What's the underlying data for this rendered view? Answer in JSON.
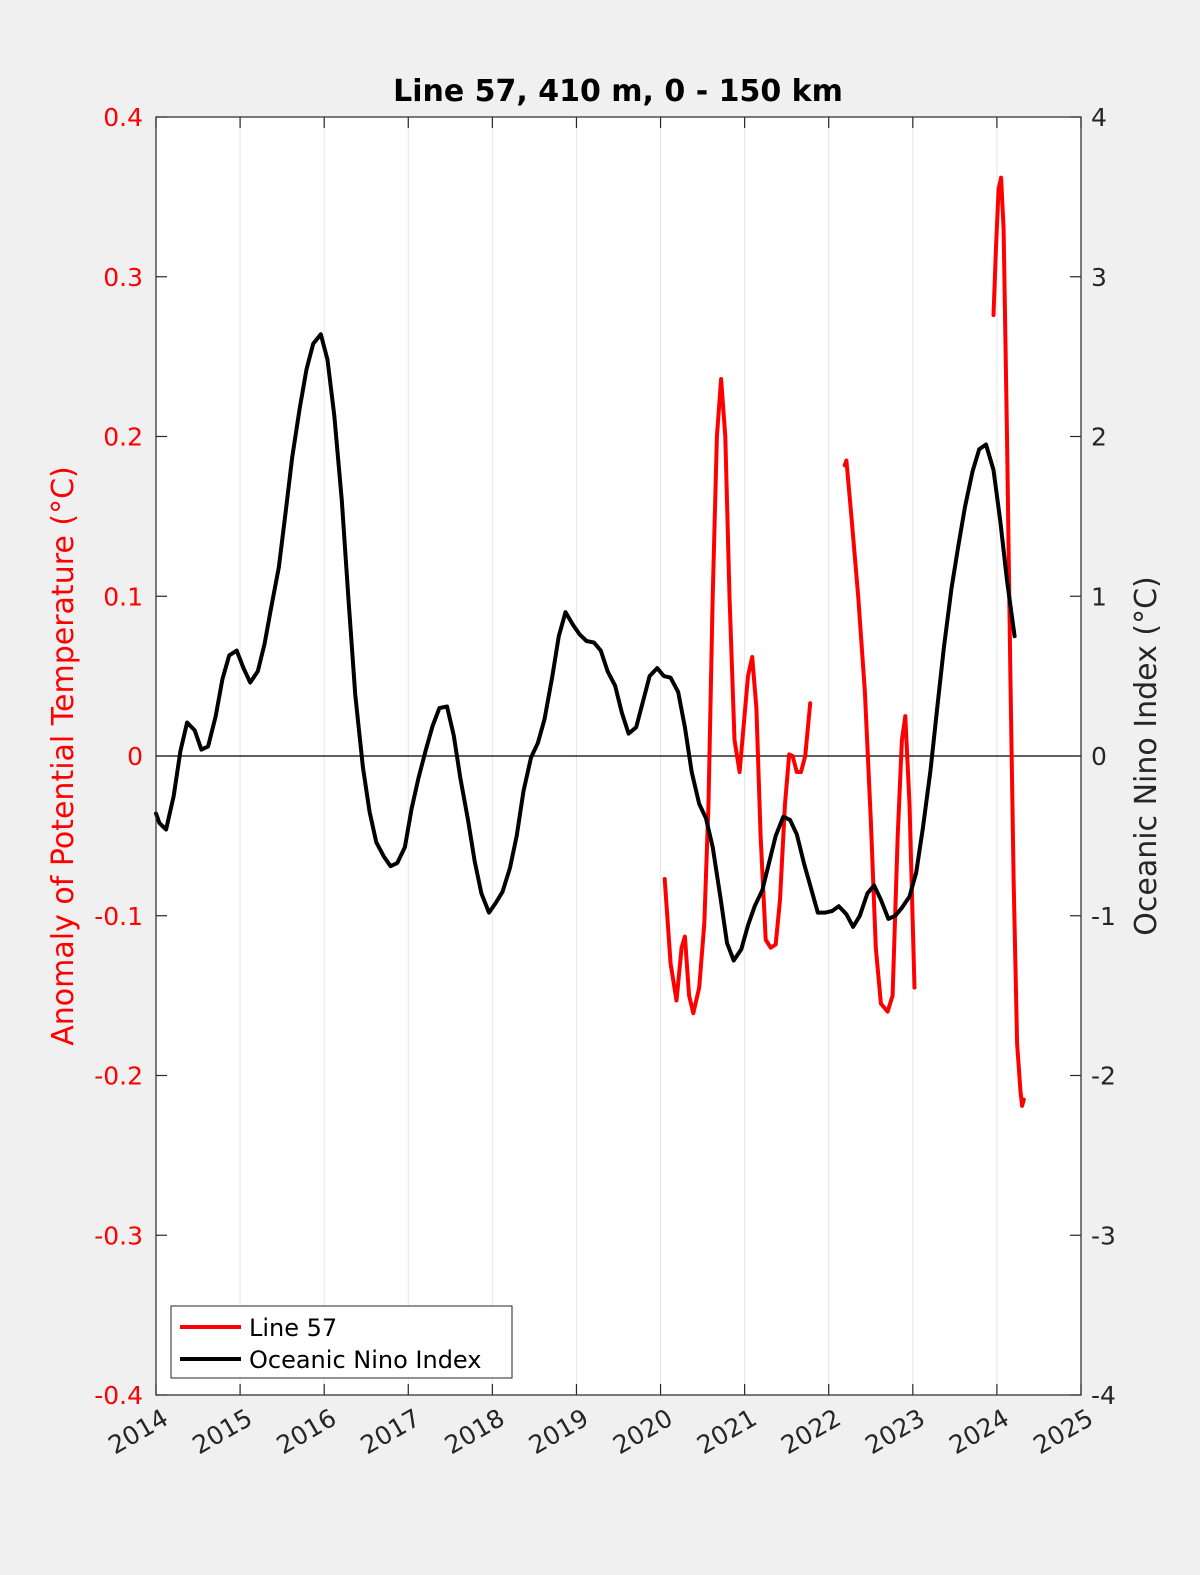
{
  "chart_data": {
    "type": "line",
    "title": "Line 57, 410 m, 0 - 150 km",
    "ylabel_left": "Anomaly of Potential Temperature (°C)",
    "ylabel_right": "Oceanic Nino Index (°C)",
    "xlim": [
      2014,
      2025
    ],
    "ylim_left": [
      -0.4,
      0.4
    ],
    "ylim_right": [
      -4,
      4
    ],
    "xticks": [
      2014,
      2015,
      2016,
      2017,
      2018,
      2019,
      2020,
      2021,
      2022,
      2023,
      2024,
      2025
    ],
    "xtick_labels": [
      "2014",
      "2015",
      "2016",
      "2017",
      "2018",
      "2019",
      "2020",
      "2021",
      "2022",
      "2023",
      "2024",
      "2025"
    ],
    "yticks_left": [
      "-0.4",
      "-0.3",
      "-0.2",
      "-0.1",
      "0",
      "0.1",
      "0.2",
      "0.3",
      "0.4"
    ],
    "yticks_right": [
      "-4",
      "-3",
      "-2",
      "-1",
      "0",
      "1",
      "2",
      "3",
      "4"
    ],
    "grid": "vertical",
    "legend_position": "bottom-left",
    "series": [
      {
        "name": "Line 57",
        "axis": "left",
        "color": "#ff0000",
        "segments": [
          [
            [
              2020.05,
              -0.077
            ],
            [
              2020.12,
              -0.13
            ],
            [
              2020.19,
              -0.153
            ],
            [
              2020.25,
              -0.12
            ],
            [
              2020.29,
              -0.113
            ],
            [
              2020.34,
              -0.15
            ],
            [
              2020.39,
              -0.161
            ],
            [
              2020.46,
              -0.145
            ],
            [
              2020.52,
              -0.105
            ],
            [
              2020.57,
              -0.03
            ],
            [
              2020.62,
              0.1
            ],
            [
              2020.67,
              0.2
            ],
            [
              2020.72,
              0.236
            ],
            [
              2020.77,
              0.2
            ],
            [
              2020.82,
              0.1
            ],
            [
              2020.88,
              0.01
            ],
            [
              2020.94,
              -0.01
            ],
            [
              2020.99,
              0.02
            ],
            [
              2021.04,
              0.05
            ],
            [
              2021.09,
              0.062
            ],
            [
              2021.14,
              0.03
            ],
            [
              2021.19,
              -0.05
            ],
            [
              2021.25,
              -0.115
            ],
            [
              2021.31,
              -0.12
            ],
            [
              2021.37,
              -0.118
            ],
            [
              2021.42,
              -0.09
            ],
            [
              2021.48,
              -0.03
            ],
            [
              2021.53,
              0.001
            ],
            [
              2021.57,
              0.0
            ],
            [
              2021.62,
              -0.01
            ],
            [
              2021.67,
              -0.01
            ],
            [
              2021.72,
              0.0
            ],
            [
              2021.78,
              0.033
            ]
          ],
          [
            [
              2022.19,
              0.182
            ],
            [
              2022.21,
              0.185
            ],
            [
              2022.27,
              0.15
            ],
            [
              2022.35,
              0.1
            ],
            [
              2022.43,
              0.04
            ],
            [
              2022.5,
              -0.04
            ],
            [
              2022.56,
              -0.12
            ],
            [
              2022.62,
              -0.155
            ],
            [
              2022.7,
              -0.16
            ],
            [
              2022.76,
              -0.15
            ],
            [
              2022.82,
              -0.05
            ],
            [
              2022.87,
              0.01
            ],
            [
              2022.91,
              0.025
            ],
            [
              2022.96,
              -0.03
            ],
            [
              2023.02,
              -0.145
            ]
          ],
          [
            [
              2023.96,
              0.276
            ],
            [
              2023.99,
              0.32
            ],
            [
              2024.02,
              0.355
            ],
            [
              2024.05,
              0.362
            ],
            [
              2024.08,
              0.33
            ],
            [
              2024.12,
              0.2
            ],
            [
              2024.16,
              0.05
            ],
            [
              2024.2,
              -0.08
            ],
            [
              2024.24,
              -0.18
            ],
            [
              2024.28,
              -0.21
            ],
            [
              2024.3,
              -0.219
            ],
            [
              2024.32,
              -0.215
            ]
          ]
        ]
      },
      {
        "name": "Oceanic Nino Index",
        "axis": "right",
        "color": "#000000",
        "segments": [
          [
            [
              2014.0,
              -0.36
            ],
            [
              2014.04,
              -0.42
            ],
            [
              2014.12,
              -0.46
            ],
            [
              2014.21,
              -0.25
            ],
            [
              2014.29,
              0.03
            ],
            [
              2014.37,
              0.21
            ],
            [
              2014.46,
              0.16
            ],
            [
              2014.54,
              0.04
            ],
            [
              2014.62,
              0.06
            ],
            [
              2014.71,
              0.25
            ],
            [
              2014.79,
              0.48
            ],
            [
              2014.87,
              0.63
            ],
            [
              2014.96,
              0.66
            ],
            [
              2015.04,
              0.55
            ],
            [
              2015.12,
              0.46
            ],
            [
              2015.21,
              0.53
            ],
            [
              2015.29,
              0.7
            ],
            [
              2015.37,
              0.93
            ],
            [
              2015.46,
              1.18
            ],
            [
              2015.54,
              1.52
            ],
            [
              2015.62,
              1.87
            ],
            [
              2015.71,
              2.18
            ],
            [
              2015.79,
              2.42
            ],
            [
              2015.87,
              2.58
            ],
            [
              2015.96,
              2.64
            ],
            [
              2016.04,
              2.48
            ],
            [
              2016.12,
              2.13
            ],
            [
              2016.21,
              1.6
            ],
            [
              2016.29,
              0.97
            ],
            [
              2016.37,
              0.38
            ],
            [
              2016.46,
              -0.07
            ],
            [
              2016.54,
              -0.35
            ],
            [
              2016.62,
              -0.54
            ],
            [
              2016.71,
              -0.63
            ],
            [
              2016.79,
              -0.69
            ],
            [
              2016.87,
              -0.67
            ],
            [
              2016.96,
              -0.57
            ],
            [
              2017.04,
              -0.33
            ],
            [
              2017.12,
              -0.14
            ],
            [
              2017.21,
              0.04
            ],
            [
              2017.29,
              0.19
            ],
            [
              2017.37,
              0.3
            ],
            [
              2017.46,
              0.31
            ],
            [
              2017.54,
              0.13
            ],
            [
              2017.62,
              -0.14
            ],
            [
              2017.71,
              -0.4
            ],
            [
              2017.79,
              -0.66
            ],
            [
              2017.87,
              -0.86
            ],
            [
              2017.96,
              -0.98
            ],
            [
              2018.04,
              -0.92
            ],
            [
              2018.12,
              -0.85
            ],
            [
              2018.21,
              -0.7
            ],
            [
              2018.29,
              -0.5
            ],
            [
              2018.37,
              -0.22
            ],
            [
              2018.46,
              -0.01
            ],
            [
              2018.54,
              0.08
            ],
            [
              2018.62,
              0.23
            ],
            [
              2018.71,
              0.49
            ],
            [
              2018.79,
              0.75
            ],
            [
              2018.87,
              0.9
            ],
            [
              2018.96,
              0.82
            ],
            [
              2019.04,
              0.76
            ],
            [
              2019.12,
              0.72
            ],
            [
              2019.21,
              0.71
            ],
            [
              2019.29,
              0.66
            ],
            [
              2019.37,
              0.53
            ],
            [
              2019.46,
              0.44
            ],
            [
              2019.54,
              0.27
            ],
            [
              2019.62,
              0.14
            ],
            [
              2019.71,
              0.18
            ],
            [
              2019.79,
              0.34
            ],
            [
              2019.87,
              0.5
            ],
            [
              2019.96,
              0.55
            ],
            [
              2020.04,
              0.5
            ],
            [
              2020.12,
              0.49
            ],
            [
              2020.21,
              0.4
            ],
            [
              2020.29,
              0.18
            ],
            [
              2020.37,
              -0.1
            ],
            [
              2020.46,
              -0.3
            ],
            [
              2020.54,
              -0.39
            ],
            [
              2020.62,
              -0.57
            ],
            [
              2020.71,
              -0.88
            ],
            [
              2020.79,
              -1.17
            ],
            [
              2020.87,
              -1.28
            ],
            [
              2020.96,
              -1.21
            ],
            [
              2021.04,
              -1.06
            ],
            [
              2021.12,
              -0.94
            ],
            [
              2021.21,
              -0.84
            ],
            [
              2021.29,
              -0.67
            ],
            [
              2021.37,
              -0.5
            ],
            [
              2021.46,
              -0.38
            ],
            [
              2021.54,
              -0.4
            ],
            [
              2021.62,
              -0.49
            ],
            [
              2021.71,
              -0.68
            ],
            [
              2021.79,
              -0.83
            ],
            [
              2021.87,
              -0.98
            ],
            [
              2021.96,
              -0.98
            ],
            [
              2022.04,
              -0.97
            ],
            [
              2022.12,
              -0.94
            ],
            [
              2022.21,
              -0.99
            ],
            [
              2022.29,
              -1.07
            ],
            [
              2022.37,
              -1.0
            ],
            [
              2022.46,
              -0.86
            ],
            [
              2022.54,
              -0.81
            ],
            [
              2022.62,
              -0.9
            ],
            [
              2022.71,
              -1.02
            ],
            [
              2022.79,
              -1.0
            ],
            [
              2022.87,
              -0.95
            ],
            [
              2022.96,
              -0.88
            ],
            [
              2023.04,
              -0.73
            ],
            [
              2023.12,
              -0.45
            ],
            [
              2023.21,
              -0.09
            ],
            [
              2023.29,
              0.3
            ],
            [
              2023.37,
              0.68
            ],
            [
              2023.46,
              1.05
            ],
            [
              2023.54,
              1.31
            ],
            [
              2023.62,
              1.56
            ],
            [
              2023.71,
              1.78
            ],
            [
              2023.79,
              1.92
            ],
            [
              2023.87,
              1.95
            ],
            [
              2023.96,
              1.79
            ],
            [
              2024.04,
              1.47
            ],
            [
              2024.12,
              1.1
            ],
            [
              2024.21,
              0.75
            ]
          ]
        ]
      }
    ]
  }
}
